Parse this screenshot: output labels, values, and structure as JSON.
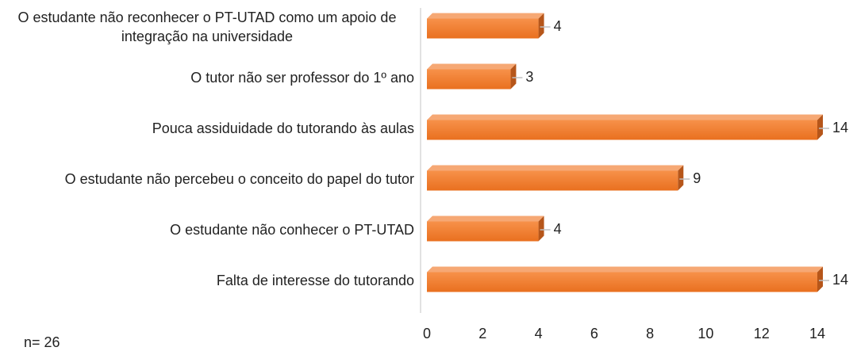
{
  "chart_data": {
    "type": "bar",
    "categories": [
      "O estudante não reconhecer o PT-UTAD como um apoio de integração na universidade",
      "O tutor não ser professor do 1º ano",
      "Pouca assiduidade do tutorando às aulas",
      "O estudante não percebeu o conceito do papel do tutor",
      "O estudante não conhecer o PT-UTAD",
      "Falta de interesse do tutorando"
    ],
    "values": [
      4,
      3,
      14,
      9,
      4,
      14
    ],
    "color": "#f07c2a",
    "xlim": [
      0,
      14
    ],
    "xticks": [
      0,
      2,
      4,
      6,
      8,
      10,
      12,
      14
    ],
    "annotation": "n= 26"
  }
}
